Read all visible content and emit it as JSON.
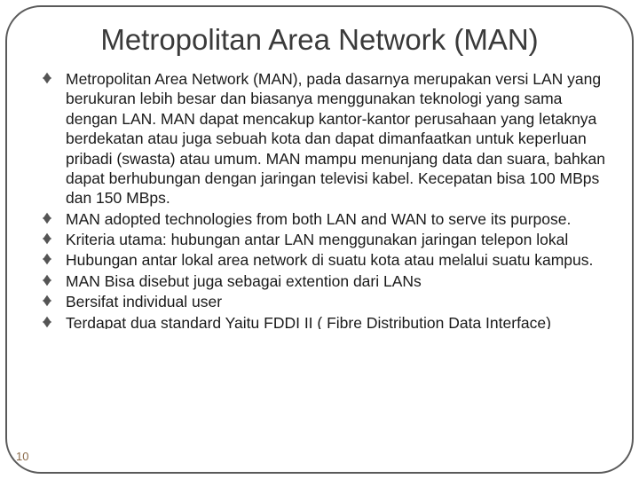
{
  "slide": {
    "title": "Metropolitan Area Network (MAN)",
    "page_number": "10",
    "border_color": "#5a5a5a",
    "title_color": "#3a3a3a",
    "text_color": "#1a1a1a",
    "bullet_color": "#555555",
    "background": "#ffffff",
    "title_fontsize": 33,
    "body_fontsize": 17.5,
    "bullets": [
      "Metropolitan Area Network (MAN), pada dasarnya merupakan versi LAN yang berukuran lebih besar dan biasanya menggunakan teknologi yang sama dengan LAN. MAN dapat mencakup kantor-kantor perusahaan yang letaknya berdekatan atau juga sebuah kota dan dapat dimanfaatkan untuk keperluan pribadi (swasta) atau umum. MAN mampu menunjang data dan suara, bahkan dapat berhubungan dengan jaringan televisi kabel.\n Kecepatan bisa 100 MBps dan 150 MBps.",
      "MAN adopted technologies from both LAN and WAN to serve its purpose.",
      "Kriteria utama: hubungan antar LAN menggunakan jaringan telepon lokal",
      "Hubungan antar lokal area network di suatu kota atau melalui suatu kampus.",
      "MAN Bisa disebut juga sebagai extention dari LANs",
      "Bersifat individual user",
      "Terdapat dua standard Yaitu FDDI II ( Fibre Distribution Data Interface)"
    ]
  }
}
